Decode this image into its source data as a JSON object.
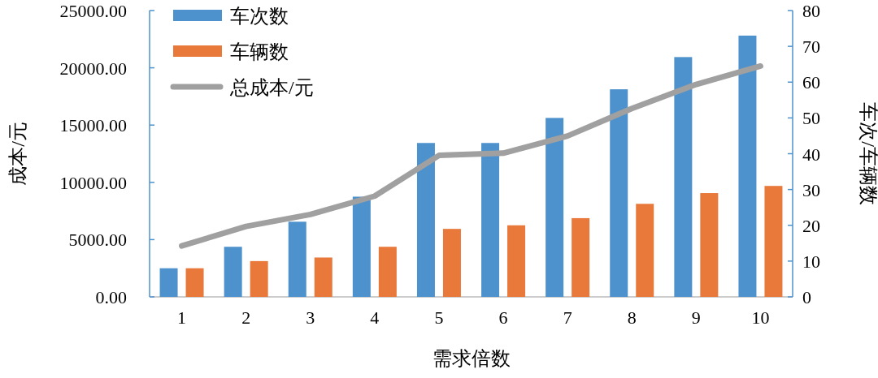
{
  "chart_data": {
    "type": "bar",
    "xlabel": "需求倍数",
    "ylabel": "成本/元",
    "y2label": "车次/车辆数",
    "categories": [
      "1",
      "2",
      "3",
      "4",
      "5",
      "6",
      "7",
      "8",
      "9",
      "10"
    ],
    "series": [
      {
        "name": "车次数",
        "color": "#4e92cd",
        "axis": "y2",
        "values": [
          8,
          14,
          21,
          28,
          43,
          43,
          50,
          58,
          67,
          73
        ]
      },
      {
        "name": "车辆数",
        "color": "#e8793a",
        "axis": "y2",
        "values": [
          8,
          10,
          11,
          14,
          19,
          20,
          22,
          26,
          29,
          31
        ]
      },
      {
        "name": "总成本/元",
        "type": "line",
        "color": "#a0a0a0",
        "values": [
          4450,
          6150,
          7200,
          8800,
          12350,
          12550,
          14050,
          16450,
          18550,
          20150
        ]
      }
    ],
    "ylim": [
      0,
      25000
    ],
    "yticks": [
      {
        "value": 0,
        "label": "0.00"
      },
      {
        "value": 5000,
        "label": "5000.00"
      },
      {
        "value": 10000,
        "label": "10000.00"
      },
      {
        "value": 15000,
        "label": "15000.00"
      },
      {
        "value": 20000,
        "label": "20000.00"
      },
      {
        "value": 25000,
        "label": "25000.00"
      }
    ],
    "y2lim": [
      0,
      80
    ],
    "y2ticks": [
      0,
      10,
      20,
      30,
      40,
      50,
      60,
      70,
      80
    ],
    "legend": "top left",
    "grid": false
  }
}
